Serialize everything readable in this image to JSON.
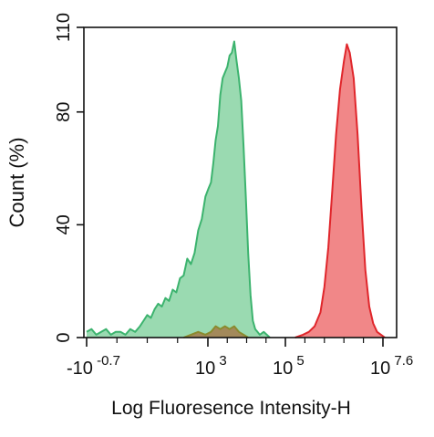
{
  "chart_data": {
    "type": "area",
    "title": "",
    "xlabel": "Log Fluoresence Intensity-H",
    "ylabel": "Count  (%)",
    "ylim": [
      0,
      110
    ],
    "y_ticks": [
      {
        "value": 0,
        "label": "0"
      },
      {
        "value": 40,
        "label": "40"
      },
      {
        "value": 80,
        "label": "80"
      },
      {
        "value": 110,
        "label": "110"
      }
    ],
    "x_scale": "biexponential",
    "x_ticks": [
      {
        "base": "-10",
        "exp": "-0.7"
      },
      {
        "base": "10",
        "exp": "3"
      },
      {
        "base": "10",
        "exp": "5"
      },
      {
        "base": "10",
        "exp": "7.6"
      }
    ],
    "grid": false,
    "legend": "none",
    "series": [
      {
        "color": "#3cb36e",
        "fill": "#8fd6a8",
        "points": [
          [
            0.0,
            2
          ],
          [
            0.04,
            3
          ],
          [
            0.08,
            1
          ],
          [
            0.12,
            2
          ],
          [
            0.16,
            3
          ],
          [
            0.2,
            1
          ],
          [
            0.24,
            2
          ],
          [
            0.28,
            2
          ],
          [
            0.32,
            1
          ],
          [
            0.36,
            3
          ],
          [
            0.4,
            2
          ],
          [
            0.44,
            4
          ],
          [
            0.47,
            6
          ],
          [
            0.5,
            8
          ],
          [
            0.53,
            7
          ],
          [
            0.56,
            10
          ],
          [
            0.59,
            12
          ],
          [
            0.62,
            11
          ],
          [
            0.65,
            14
          ],
          [
            0.68,
            13
          ],
          [
            0.71,
            17
          ],
          [
            0.74,
            16
          ],
          [
            0.77,
            21
          ],
          [
            0.8,
            22
          ],
          [
            0.83,
            28
          ],
          [
            0.86,
            26
          ],
          [
            0.89,
            30
          ],
          [
            0.92,
            38
          ],
          [
            0.95,
            42
          ],
          [
            0.98,
            50
          ],
          [
            1.01,
            53
          ],
          [
            1.04,
            55
          ],
          [
            1.07,
            62
          ],
          [
            1.1,
            70
          ],
          [
            1.13,
            75
          ],
          [
            1.16,
            86
          ],
          [
            1.19,
            92
          ],
          [
            1.22,
            94
          ],
          [
            1.25,
            96
          ],
          [
            1.28,
            100
          ],
          [
            1.31,
            101
          ],
          [
            1.34,
            105
          ],
          [
            1.37,
            98
          ],
          [
            1.4,
            92
          ],
          [
            1.43,
            84
          ],
          [
            1.46,
            68
          ],
          [
            1.49,
            50
          ],
          [
            1.52,
            30
          ],
          [
            1.55,
            15
          ],
          [
            1.58,
            6
          ],
          [
            1.61,
            3
          ],
          [
            1.64,
            2
          ],
          [
            1.67,
            1
          ],
          [
            1.72,
            2
          ],
          [
            1.76,
            1
          ],
          [
            1.8,
            0
          ]
        ]
      },
      {
        "color": "#e0262b",
        "fill": "#f07a7b",
        "points": [
          [
            2.1,
            0
          ],
          [
            2.18,
            1
          ],
          [
            2.24,
            2
          ],
          [
            2.3,
            4
          ],
          [
            2.36,
            9
          ],
          [
            2.4,
            18
          ],
          [
            2.44,
            32
          ],
          [
            2.48,
            52
          ],
          [
            2.52,
            72
          ],
          [
            2.56,
            88
          ],
          [
            2.6,
            98
          ],
          [
            2.63,
            104
          ],
          [
            2.66,
            101
          ],
          [
            2.7,
            92
          ],
          [
            2.74,
            72
          ],
          [
            2.78,
            46
          ],
          [
            2.82,
            24
          ],
          [
            2.86,
            11
          ],
          [
            2.9,
            5
          ],
          [
            2.94,
            2
          ],
          [
            2.98,
            1
          ],
          [
            3.02,
            0
          ]
        ]
      },
      {
        "color": "#8a8a2e",
        "fill": "#a47a4c",
        "points": [
          [
            0.8,
            0
          ],
          [
            0.86,
            1
          ],
          [
            0.92,
            2
          ],
          [
            0.98,
            1
          ],
          [
            1.04,
            2
          ],
          [
            1.1,
            4
          ],
          [
            1.16,
            3
          ],
          [
            1.22,
            4
          ],
          [
            1.28,
            3
          ],
          [
            1.34,
            4
          ],
          [
            1.4,
            2
          ],
          [
            1.46,
            1
          ],
          [
            1.52,
            0
          ]
        ]
      }
    ]
  }
}
